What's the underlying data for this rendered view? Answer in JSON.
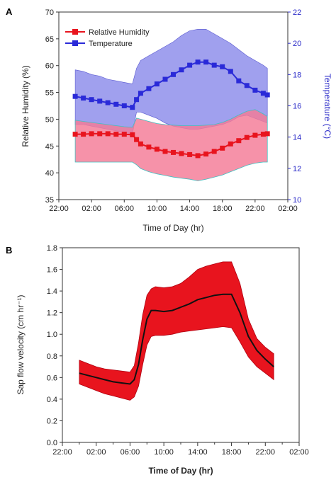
{
  "chart_data": [
    {
      "panel_label": "A",
      "type": "line",
      "xlabel": "Time of Day (hr)",
      "ylabel": "Relative Humidity (%)",
      "y2label": "Temperature (°C)",
      "xlim": [
        -2,
        26
      ],
      "ylim": [
        35,
        70
      ],
      "y2lim": [
        10,
        22
      ],
      "x_ticks": [
        -2,
        2,
        6,
        10,
        14,
        18,
        22,
        26
      ],
      "x_tick_labels": [
        "22:00",
        "02:00",
        "06:00",
        "10:00",
        "14:00",
        "18:00",
        "22:00",
        "02:00"
      ],
      "y_ticks": [
        35,
        40,
        45,
        50,
        55,
        60,
        65,
        70
      ],
      "y2_ticks": [
        10,
        12,
        14,
        16,
        18,
        20,
        22
      ],
      "legend_position": "top-left",
      "series": [
        {
          "name": "Relative Humidity",
          "axis": "left",
          "color": "#e8141e",
          "band_color": "#f47a96",
          "x": [
            0,
            1,
            2,
            3,
            4,
            5,
            6,
            7,
            7.5,
            8,
            9,
            10,
            11,
            12,
            13,
            14,
            15,
            16,
            17,
            18,
            19,
            20,
            21,
            22,
            23,
            23.5
          ],
          "values": [
            47.2,
            47.2,
            47.3,
            47.3,
            47.3,
            47.2,
            47.2,
            47.1,
            46.2,
            45.4,
            44.8,
            44.4,
            44.0,
            43.8,
            43.6,
            43.4,
            43.2,
            43.5,
            44.0,
            44.6,
            45.4,
            46.0,
            46.6,
            47.0,
            47.2,
            47.3
          ],
          "lower": [
            42.0,
            42.0,
            42.0,
            42.0,
            42.0,
            42.0,
            42.0,
            42.0,
            41.5,
            40.8,
            40.2,
            39.8,
            39.5,
            39.2,
            39.0,
            38.8,
            38.5,
            38.8,
            39.2,
            39.6,
            40.2,
            40.8,
            41.4,
            41.8,
            42.0,
            42.0
          ],
          "upper": [
            49.8,
            49.6,
            49.4,
            49.2,
            49.0,
            48.8,
            48.6,
            48.5,
            50.2,
            50.0,
            49.6,
            49.2,
            49.0,
            48.9,
            48.8,
            48.8,
            48.8,
            48.9,
            49.0,
            49.4,
            50.0,
            50.8,
            51.5,
            51.8,
            51.0,
            50.5
          ]
        },
        {
          "name": "Temperature",
          "axis": "right",
          "color": "#2a2ad8",
          "band_color": "#8080e8",
          "x": [
            0,
            1,
            2,
            3,
            4,
            5,
            6,
            7,
            7.5,
            8,
            9,
            10,
            11,
            12,
            13,
            14,
            15,
            16,
            17,
            18,
            19,
            20,
            21,
            22,
            23,
            23.5
          ],
          "values": [
            16.6,
            16.5,
            16.4,
            16.3,
            16.2,
            16.1,
            16.0,
            15.9,
            16.4,
            16.8,
            17.1,
            17.4,
            17.7,
            18.0,
            18.3,
            18.6,
            18.8,
            18.8,
            18.6,
            18.5,
            18.2,
            17.6,
            17.3,
            17.0,
            16.8,
            16.7
          ],
          "lower": [
            14.8,
            14.8,
            14.7,
            14.6,
            14.5,
            14.4,
            14.3,
            14.2,
            15.6,
            15.6,
            15.4,
            15.2,
            14.9,
            14.7,
            14.6,
            14.5,
            14.5,
            14.6,
            14.7,
            14.8,
            15.0,
            15.3,
            15.4,
            15.2,
            15.0,
            14.9
          ],
          "upper": [
            18.3,
            18.2,
            18.0,
            17.9,
            17.7,
            17.6,
            17.5,
            17.4,
            18.4,
            18.9,
            19.2,
            19.5,
            19.8,
            20.1,
            20.5,
            20.8,
            20.9,
            20.9,
            20.6,
            20.3,
            20.0,
            19.6,
            19.2,
            18.9,
            18.6,
            18.4
          ]
        }
      ]
    },
    {
      "panel_label": "B",
      "type": "line",
      "xlabel": "Time of Day (hr)",
      "ylabel": "Sap flow velocity (cm hr⁻¹)",
      "xlim": [
        -2,
        26
      ],
      "ylim": [
        0.0,
        1.8
      ],
      "x_ticks": [
        -2,
        0,
        2,
        4,
        6,
        8,
        10,
        12,
        14,
        16,
        18,
        20,
        22,
        24,
        26
      ],
      "x_tick_labels": [
        "22:00",
        "",
        "02:00",
        "",
        "06:00",
        "",
        "10:00",
        "",
        "14:00",
        "",
        "18:00",
        "",
        "22:00",
        "",
        "02:00"
      ],
      "y_ticks": [
        0.0,
        0.2,
        0.4,
        0.6,
        0.8,
        1.0,
        1.2,
        1.4,
        1.6,
        1.8
      ],
      "y_tick_labels": [
        "0.0",
        "0.2",
        "0.4",
        "0.6",
        "0.8",
        "1.0",
        "1.2",
        "1.4",
        "1.6",
        "1.8"
      ],
      "series": [
        {
          "color": "#111111",
          "band_color": "#e8141e",
          "x": [
            0,
            1,
            2,
            3,
            4,
            5,
            6,
            6.5,
            7,
            7.5,
            8,
            8.5,
            9,
            10,
            11,
            12,
            13,
            14,
            15,
            16,
            17,
            18,
            19,
            20,
            21,
            22,
            23
          ],
          "values": [
            0.64,
            0.62,
            0.6,
            0.58,
            0.56,
            0.55,
            0.54,
            0.58,
            0.72,
            0.95,
            1.14,
            1.22,
            1.22,
            1.21,
            1.22,
            1.25,
            1.28,
            1.32,
            1.34,
            1.36,
            1.37,
            1.37,
            1.2,
            0.98,
            0.85,
            0.77,
            0.7
          ],
          "lower": [
            0.54,
            0.51,
            0.48,
            0.45,
            0.43,
            0.41,
            0.39,
            0.42,
            0.52,
            0.72,
            0.9,
            0.98,
            0.99,
            0.99,
            1.0,
            1.02,
            1.03,
            1.04,
            1.05,
            1.06,
            1.07,
            1.06,
            0.93,
            0.79,
            0.7,
            0.64,
            0.58
          ],
          "upper": [
            0.76,
            0.73,
            0.7,
            0.68,
            0.67,
            0.66,
            0.65,
            0.71,
            0.92,
            1.18,
            1.36,
            1.42,
            1.44,
            1.43,
            1.44,
            1.47,
            1.53,
            1.6,
            1.63,
            1.65,
            1.67,
            1.67,
            1.47,
            1.14,
            0.96,
            0.88,
            0.82
          ]
        }
      ]
    }
  ]
}
